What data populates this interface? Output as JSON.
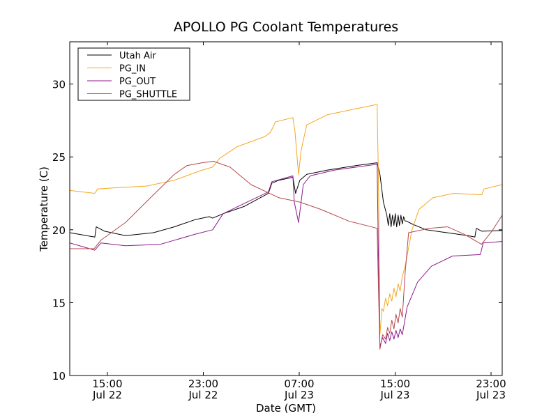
{
  "chart_data": {
    "type": "line",
    "title": "APOLLO PG Coolant Temperatures",
    "xlabel": "Date (GMT)",
    "ylabel": "Temperature (C)",
    "x_unit": "hours since Jul 22 00:00 GMT",
    "xlim": [
      11.86,
      47.93
    ],
    "ylim": [
      10,
      32.9
    ],
    "yticks": [
      10,
      15,
      20,
      25,
      30
    ],
    "xticks": [
      {
        "value": 15,
        "label_time": "15:00",
        "label_date": "Jul 22"
      },
      {
        "value": 23,
        "label_time": "23:00",
        "label_date": "Jul 22"
      },
      {
        "value": 31,
        "label_time": "07:00",
        "label_date": "Jul 23"
      },
      {
        "value": 39,
        "label_time": "15:00",
        "label_date": "Jul 23"
      },
      {
        "value": 47,
        "label_time": "23:00",
        "label_date": "Jul 23"
      }
    ],
    "grid": false,
    "legend_position": "top-left",
    "series": [
      {
        "name": "Utah Air",
        "color": "#000000",
        "x": [
          11.86,
          13.95,
          14.07,
          14.77,
          16.51,
          18.84,
          20.58,
          22.33,
          23.49,
          23.78,
          24.65,
          26.4,
          28.43,
          28.72,
          29.3,
          30.47,
          30.7,
          31.05,
          31.63,
          33.37,
          35.7,
          37.5,
          37.73,
          38.02,
          38.31,
          38.43,
          38.55,
          38.66,
          38.78,
          38.9,
          39.01,
          39.13,
          39.25,
          39.36,
          39.48,
          39.6,
          39.71,
          39.83,
          39.95,
          40.41,
          41.58,
          43.32,
          45.07,
          45.65,
          45.77,
          46.23,
          47.93
        ],
        "y": [
          19.8,
          19.5,
          20.2,
          19.9,
          19.6,
          19.8,
          20.2,
          20.7,
          20.9,
          20.8,
          21.1,
          21.6,
          22.5,
          23.2,
          23.4,
          23.6,
          22.5,
          23.4,
          23.8,
          24.1,
          24.4,
          24.6,
          23.8,
          21.9,
          21.0,
          20.3,
          21.1,
          20.2,
          21.0,
          20.3,
          21.1,
          20.2,
          21.0,
          20.3,
          21.0,
          20.4,
          20.9,
          20.6,
          20.6,
          20.4,
          20.0,
          19.8,
          19.6,
          19.5,
          20.1,
          19.9,
          19.95
        ]
      },
      {
        "name": "PG_IN",
        "color": "#f5a623",
        "x": [
          11.86,
          13.95,
          14.19,
          15.93,
          18.26,
          20.58,
          22.91,
          23.78,
          24.36,
          25.82,
          28.14,
          28.61,
          29.01,
          30.47,
          30.64,
          30.94,
          31.17,
          31.63,
          33.37,
          35.7,
          37.5,
          37.61,
          37.68,
          37.73,
          37.9,
          38.02,
          38.2,
          38.37,
          38.55,
          38.72,
          38.9,
          39.07,
          39.25,
          39.42,
          39.6,
          39.83,
          40.41,
          40.99,
          42.15,
          43.9,
          46.23,
          46.4,
          47.93
        ],
        "y": [
          22.7,
          22.5,
          22.8,
          22.9,
          23.0,
          23.4,
          24.1,
          24.3,
          24.9,
          25.7,
          26.4,
          26.7,
          27.4,
          27.7,
          26.8,
          23.8,
          25.5,
          27.2,
          27.9,
          28.3,
          28.6,
          23.3,
          18.0,
          12.8,
          14.6,
          14.4,
          15.3,
          14.8,
          15.6,
          15.1,
          16.0,
          15.4,
          16.3,
          15.8,
          16.8,
          17.5,
          20.0,
          21.4,
          22.2,
          22.5,
          22.4,
          22.8,
          23.1
        ]
      },
      {
        "name": "PG_OUT",
        "color": "#8b1a8b",
        "x": [
          11.86,
          13.95,
          14.48,
          16.51,
          19.42,
          22.33,
          23.78,
          24.65,
          26.4,
          28.43,
          28.72,
          30.47,
          30.59,
          30.94,
          31.34,
          31.92,
          33.95,
          37.5,
          37.61,
          37.73,
          37.96,
          38.2,
          38.37,
          38.55,
          38.72,
          38.9,
          39.07,
          39.25,
          39.42,
          39.6,
          40.0,
          40.87,
          42.03,
          43.78,
          46.11,
          46.34,
          47.93
        ],
        "y": [
          19.1,
          18.6,
          19.1,
          18.9,
          19.0,
          19.7,
          20.0,
          21.1,
          21.8,
          22.6,
          23.3,
          23.7,
          21.9,
          20.5,
          23.1,
          23.7,
          24.1,
          24.5,
          18.0,
          12.0,
          12.6,
          12.2,
          12.9,
          12.4,
          13.0,
          12.5,
          13.1,
          12.6,
          13.2,
          12.8,
          14.7,
          16.4,
          17.5,
          18.2,
          18.3,
          19.1,
          19.2
        ]
      },
      {
        "name": "PG_SHUTTLE",
        "color": "#b5474b",
        "x": [
          11.86,
          13.89,
          14.48,
          16.51,
          18.84,
          20.58,
          21.62,
          22.91,
          23.84,
          25.23,
          26.98,
          29.3,
          31.05,
          32.8,
          35.12,
          37.5,
          37.61,
          37.73,
          37.96,
          38.2,
          38.37,
          38.55,
          38.72,
          38.9,
          39.07,
          39.25,
          39.42,
          39.6,
          39.83,
          40.12,
          41.86,
          43.37,
          44.74,
          46.2,
          47.07,
          47.93
        ],
        "y": [
          18.7,
          18.7,
          19.3,
          20.5,
          22.4,
          23.8,
          24.4,
          24.6,
          24.7,
          24.3,
          23.1,
          22.2,
          21.9,
          21.4,
          20.6,
          20.1,
          16.0,
          11.8,
          12.8,
          12.5,
          13.3,
          12.9,
          13.8,
          13.2,
          14.2,
          13.6,
          14.6,
          14.0,
          17.0,
          19.8,
          20.1,
          20.2,
          19.7,
          19.0,
          19.9,
          21.0
        ]
      }
    ]
  }
}
